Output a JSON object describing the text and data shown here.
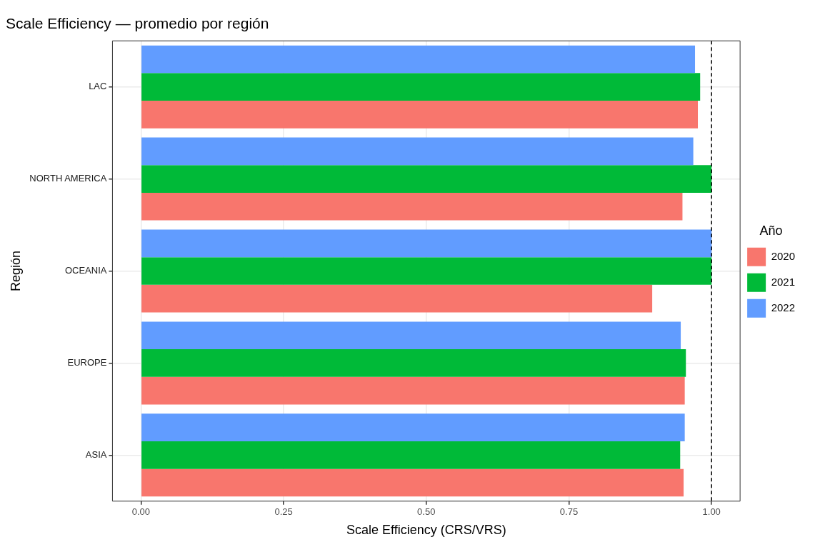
{
  "chart_data": {
    "type": "bar",
    "orientation": "horizontal",
    "title": "Scale Efficiency — promedio por región",
    "xlabel": "Scale Efficiency (CRS/VRS)",
    "ylabel": "Región",
    "legend_title": "Año",
    "categories": [
      "LAC",
      "NORTH AMERICA",
      "OCEANIA",
      "EUROPE",
      "ASIA"
    ],
    "series": [
      {
        "name": "2020",
        "color": "#f8766d",
        "values": [
          0.976,
          0.949,
          0.896,
          0.953,
          0.951
        ]
      },
      {
        "name": "2021",
        "color": "#00ba38",
        "values": [
          0.98,
          1.0,
          1.0,
          0.955,
          0.945
        ]
      },
      {
        "name": "2022",
        "color": "#619cff",
        "values": [
          0.971,
          0.968,
          1.0,
          0.946,
          0.953
        ]
      }
    ],
    "xlim": [
      -0.05,
      1.05
    ],
    "xticks": [
      {
        "value": 0,
        "label": "0.00"
      },
      {
        "value": 0.25,
        "label": "0.25"
      },
      {
        "value": 0.5,
        "label": "0.50"
      },
      {
        "value": 0.75,
        "label": "0.75"
      },
      {
        "value": 1,
        "label": "1.00"
      }
    ],
    "ref_lines": [
      {
        "axis": "x",
        "value": 1,
        "line_style": "dashed",
        "color": "#000000"
      }
    ],
    "grid": true,
    "legend": "right"
  }
}
